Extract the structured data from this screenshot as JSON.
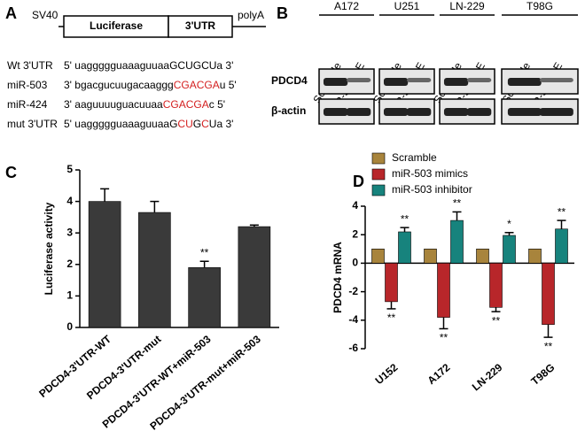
{
  "construct": {
    "label": "A",
    "promoter": "SV40",
    "gene": "Luciferase",
    "utr": "3'UTR",
    "tail": "polyA"
  },
  "sequences": [
    {
      "name": "Wt 3'UTR",
      "segments": [
        {
          "text": "5' uaggggguaaaguuaaGCUGCUa 3'",
          "color": "#000000"
        }
      ]
    },
    {
      "name": "miR-503",
      "segments": [
        {
          "text": "3' bgacgucuugacaaggg",
          "color": "#000000"
        },
        {
          "text": "CGACGA",
          "color": "#d42020"
        },
        {
          "text": "u 5'",
          "color": "#000000"
        }
      ]
    },
    {
      "name": "miR-424",
      "segments": [
        {
          "text": "3'  aaguuuuguacuuaa",
          "color": "#000000"
        },
        {
          "text": "CGACGA",
          "color": "#d42020"
        },
        {
          "text": "c 5'",
          "color": "#000000"
        }
      ]
    },
    {
      "name": "mut 3'UTR",
      "segments": [
        {
          "text": "5' uaggggguaaaguuaaG",
          "color": "#000000"
        },
        {
          "text": "CU",
          "color": "#d42020"
        },
        {
          "text": "G",
          "color": "#000000"
        },
        {
          "text": "C",
          "color": "#d42020"
        },
        {
          "text": "Ua 3'",
          "color": "#000000"
        }
      ]
    }
  ],
  "blot": {
    "label": "B",
    "cell_lines": [
      "A172",
      "U251",
      "LN-229",
      "T98G"
    ],
    "lanes": [
      "Scramble",
      "miR-503 OE"
    ],
    "rows": [
      "PDCD4",
      "β-actin"
    ]
  },
  "chart_data": [
    {
      "label": "C",
      "type": "bar",
      "ylabel": "Luciferase activity",
      "categories": [
        "PDCD4-3'UTR-WT",
        "PDCD4-3'UTR-mut",
        "PDCD4-3'UTR-WT+miR-503",
        "PDCD4-3'UTR-mut+miR-503"
      ],
      "values": [
        4.0,
        3.65,
        1.9,
        3.2
      ],
      "errors": [
        0.4,
        0.35,
        0.2,
        0.05
      ],
      "annotations": [
        null,
        null,
        "**",
        null
      ],
      "color": "#3a3a3a",
      "ylim": [
        0,
        5
      ],
      "yticks": [
        0,
        1,
        2,
        3,
        4,
        5
      ]
    },
    {
      "label": "D",
      "type": "grouped_bar",
      "ylabel": "PDCD4 mRNA",
      "categories": [
        "U152",
        "A172",
        "LN-229",
        "T98G"
      ],
      "series": [
        {
          "name": "Scramble",
          "color": "#a8843c",
          "values": [
            1,
            1,
            1,
            1
          ]
        },
        {
          "name": "miR-503 mimics",
          "color": "#b8262a",
          "values": [
            -2.7,
            -3.8,
            -3.1,
            -4.3
          ],
          "errors": [
            0.5,
            0.8,
            0.3,
            0.9
          ],
          "annotations": [
            "**",
            "**",
            "**",
            "**"
          ]
        },
        {
          "name": "miR-503 inhibitor",
          "color": "#17837d",
          "values": [
            2.2,
            3.0,
            1.95,
            2.4
          ],
          "errors": [
            0.3,
            0.6,
            0.2,
            0.6
          ],
          "annotations": [
            "**",
            "**",
            "*",
            "**"
          ]
        }
      ],
      "ylim": [
        -6,
        4
      ],
      "yticks": [
        -6,
        -4,
        -2,
        0,
        2,
        4
      ]
    }
  ]
}
